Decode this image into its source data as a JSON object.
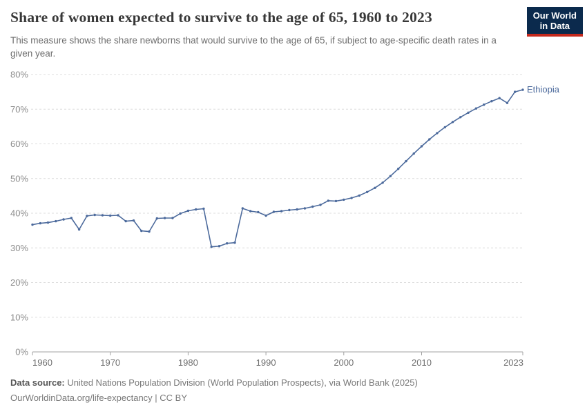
{
  "header": {
    "title": "Share of women expected to survive to the age of 65, 1960 to 2023",
    "subtitle": "This measure shows the share newborns that would survive to the age of 65, if subject to age-specific death rates in a given year.",
    "logo": {
      "line1": "Our World",
      "line2": "in Data",
      "bg_color": "#0b2a4d",
      "accent_color": "#c5291d"
    }
  },
  "chart_data": {
    "type": "line",
    "title": "Share of women expected to survive to the age of 65, 1960 to 2023",
    "xlabel": "",
    "ylabel": "",
    "grid": "horizontal-dashed",
    "legend_position": "end-of-line-label",
    "ylim": [
      0,
      80
    ],
    "yticks": [
      0,
      10,
      20,
      30,
      40,
      50,
      60,
      70,
      80
    ],
    "ytick_labels": [
      "0%",
      "10%",
      "20%",
      "30%",
      "40%",
      "50%",
      "60%",
      "70%",
      "80%"
    ],
    "xticks": [
      1960,
      1970,
      1980,
      1990,
      2000,
      2010,
      2023
    ],
    "xtick_labels": [
      "1960",
      "1970",
      "1980",
      "1990",
      "2000",
      "2010",
      "2023"
    ],
    "x": [
      1960,
      1961,
      1962,
      1963,
      1964,
      1965,
      1966,
      1967,
      1968,
      1969,
      1970,
      1971,
      1972,
      1973,
      1974,
      1975,
      1976,
      1977,
      1978,
      1979,
      1980,
      1981,
      1982,
      1983,
      1984,
      1985,
      1986,
      1987,
      1988,
      1989,
      1990,
      1991,
      1992,
      1993,
      1994,
      1995,
      1996,
      1997,
      1998,
      1999,
      2000,
      2001,
      2002,
      2003,
      2004,
      2005,
      2006,
      2007,
      2008,
      2009,
      2010,
      2011,
      2012,
      2013,
      2014,
      2015,
      2016,
      2017,
      2018,
      2019,
      2020,
      2021,
      2022,
      2023
    ],
    "series": [
      {
        "name": "Ethiopia",
        "color": "#4C6A9C",
        "values": [
          36.7,
          37.1,
          37.3,
          37.7,
          38.2,
          38.6,
          35.3,
          39.2,
          39.5,
          39.4,
          39.3,
          39.4,
          37.7,
          37.9,
          34.9,
          34.7,
          38.5,
          38.6,
          38.6,
          39.9,
          40.7,
          41.1,
          41.3,
          30.3,
          30.5,
          31.3,
          31.5,
          41.4,
          40.6,
          40.3,
          39.3,
          40.4,
          40.6,
          40.9,
          41.1,
          41.4,
          41.9,
          42.4,
          43.6,
          43.5,
          43.9,
          44.4,
          45.1,
          46.1,
          47.3,
          48.8,
          50.7,
          52.8,
          55.0,
          57.2,
          59.3,
          61.3,
          63.1,
          64.8,
          66.3,
          67.7,
          69.0,
          70.2,
          71.3,
          72.3,
          73.2,
          71.8,
          75.0,
          75.6
        ]
      }
    ],
    "end_label": "Ethiopia",
    "colors": {
      "line": "#4C6A9C",
      "gridline": "#dcdcdc",
      "axis": "#a1a1a1"
    }
  },
  "footer": {
    "datasource_label": "Data source:",
    "datasource_text": " United Nations Population Division (World Population Prospects), via World Bank (2025)",
    "link_line": "OurWorldinData.org/life-expectancy | CC BY"
  }
}
